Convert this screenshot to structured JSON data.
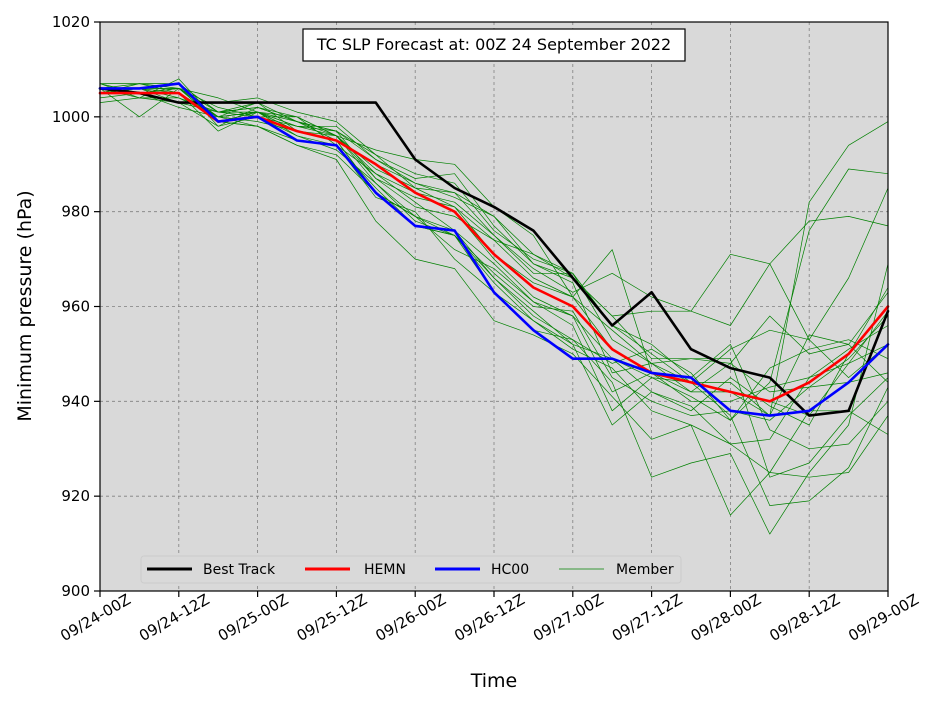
{
  "chart_data": {
    "type": "line",
    "title": "TC SLP Forecast at: 00Z 24 September 2022",
    "xlabel": "Time",
    "ylabel": "Minimum pressure (hPa)",
    "ylim": [
      900,
      1020
    ],
    "xlim": [
      0,
      120
    ],
    "yticks": [
      900,
      920,
      940,
      960,
      980,
      1000,
      1020
    ],
    "xticks": [
      {
        "value": 0,
        "label": "09/24-00Z"
      },
      {
        "value": 12,
        "label": "09/24-12Z"
      },
      {
        "value": 24,
        "label": "09/25-00Z"
      },
      {
        "value": 36,
        "label": "09/25-12Z"
      },
      {
        "value": 48,
        "label": "09/26-00Z"
      },
      {
        "value": 60,
        "label": "09/26-12Z"
      },
      {
        "value": 72,
        "label": "09/27-00Z"
      },
      {
        "value": 84,
        "label": "09/27-12Z"
      },
      {
        "value": 96,
        "label": "09/28-00Z"
      },
      {
        "value": 108,
        "label": "09/28-12Z"
      },
      {
        "value": 120,
        "label": "09/29-00Z"
      }
    ],
    "x": [
      0,
      6,
      12,
      18,
      24,
      30,
      36,
      42,
      48,
      54,
      60,
      66,
      72,
      78,
      84,
      90,
      96,
      102,
      108,
      114,
      120
    ],
    "grid": true,
    "legend_position": "bottom-left",
    "plot_background": "#d9d9d9",
    "series": [
      {
        "name": "Member",
        "color": "#008000",
        "linewidth": 0.7,
        "role": "member",
        "values": [
          1006,
          1005,
          1006,
          999,
          1001,
          997,
          995,
          990,
          984,
          980,
          970,
          962,
          958,
          949,
          945,
          944,
          937,
          918,
          919,
          926,
          943
        ]
      },
      {
        "name": "",
        "color": "#008000",
        "linewidth": 0.7,
        "role": "member",
        "values": [
          1005,
          1006,
          1007,
          998,
          1000,
          996,
          993,
          986,
          978,
          975,
          965,
          957,
          951,
          947,
          938,
          935,
          931,
          925,
          924,
          925,
          937
        ]
      },
      {
        "name": "",
        "color": "#008000",
        "linewidth": 0.7,
        "role": "member",
        "values": [
          1007,
          1004,
          1003,
          1001,
          1003,
          999,
          997,
          992,
          985,
          981,
          974,
          966,
          962,
          955,
          948,
          942,
          942,
          940,
          937,
          948,
          959
        ]
      },
      {
        "name": "",
        "color": "#008000",
        "linewidth": 0.7,
        "role": "member",
        "values": [
          1003,
          1004,
          1008,
          999,
          998,
          995,
          994,
          983,
          980,
          970,
          963,
          955,
          953,
          944,
          924,
          927,
          929,
          912,
          925,
          935,
          969
        ]
      },
      {
        "name": "",
        "color": "#008000",
        "linewidth": 0.7,
        "role": "member",
        "values": [
          1006,
          1005,
          1003,
          998,
          1002,
          999,
          996,
          988,
          982,
          976,
          969,
          961,
          956,
          938,
          945,
          941,
          936,
          944,
          976,
          989,
          988
        ]
      },
      {
        "name": "",
        "color": "#008000",
        "linewidth": 0.7,
        "role": "member",
        "values": [
          1005,
          1007,
          1005,
          1000,
          1001,
          998,
          998,
          991,
          987,
          988,
          977,
          969,
          965,
          946,
          948,
          944,
          942,
          937,
          982,
          994,
          999
        ]
      },
      {
        "name": "",
        "color": "#008000",
        "linewidth": 0.7,
        "role": "member",
        "values": [
          1006,
          1006,
          1006,
          1002,
          1000,
          1000,
          996,
          987,
          981,
          979,
          974,
          971,
          967,
          956,
          950,
          944,
          951,
          955,
          953,
          945,
          952
        ]
      },
      {
        "name": "",
        "color": "#008000",
        "linewidth": 0.7,
        "role": "member",
        "values": [
          1006,
          1004,
          1004,
          1000,
          1001,
          1000,
          994,
          985,
          977,
          975,
          963,
          957,
          952,
          949,
          942,
          938,
          945,
          939,
          935,
          950,
          964
        ]
      },
      {
        "name": "",
        "color": "#008000",
        "linewidth": 0.7,
        "role": "member",
        "values": [
          1004,
          1005,
          1002,
          1000,
          998,
          994,
          991,
          978,
          970,
          968,
          957,
          954,
          950,
          941,
          932,
          935,
          916,
          925,
          938,
          938,
          933
        ]
      },
      {
        "name": "",
        "color": "#008000",
        "linewidth": 0.7,
        "role": "member",
        "values": [
          1007,
          1007,
          1007,
          1001,
          1002,
          1000,
          996,
          986,
          979,
          972,
          968,
          961,
          958,
          942,
          946,
          940,
          940,
          943,
          945,
          951,
          956
        ]
      },
      {
        "name": "",
        "color": "#008000",
        "linewidth": 0.7,
        "role": "member",
        "values": [
          1005,
          1006,
          1003,
          1003,
          1004,
          1001,
          999,
          992,
          988,
          986,
          976,
          970,
          967,
          953,
          948,
          949,
          949,
          924,
          927,
          937,
          945
        ]
      },
      {
        "name": "",
        "color": "#008000",
        "linewidth": 0.7,
        "role": "member",
        "values": [
          1006,
          1006,
          1004,
          1001,
          1001,
          997,
          995,
          984,
          979,
          976,
          966,
          958,
          953,
          948,
          951,
          946,
          936,
          947,
          951,
          953,
          949
        ]
      },
      {
        "name": "",
        "color": "#008000",
        "linewidth": 0.7,
        "role": "member",
        "values": [
          1006,
          1006,
          1005,
          1000,
          1003,
          997,
          996,
          993,
          991,
          990,
          981,
          975,
          962,
          972,
          946,
          942,
          948,
          958,
          950,
          952,
          944
        ]
      },
      {
        "name": "",
        "color": "#008000",
        "linewidth": 0.7,
        "role": "member",
        "values": [
          1005,
          1005,
          1006,
          999,
          998,
          994,
          992,
          984,
          979,
          975,
          967,
          960,
          959,
          945,
          940,
          937,
          938,
          936,
          943,
          949,
          958
        ]
      },
      {
        "name": "",
        "color": "#008000",
        "linewidth": 0.7,
        "role": "member",
        "values": [
          1005,
          1006,
          1007,
          1001,
          1000,
          998,
          997,
          987,
          983,
          981,
          971,
          965,
          962,
          951,
          946,
          944,
          944,
          937,
          954,
          952,
          963
        ]
      },
      {
        "name": "",
        "color": "#008000",
        "linewidth": 0.7,
        "role": "member",
        "values": [
          1006,
          1007,
          1006,
          1000,
          1001,
          999,
          995,
          990,
          986,
          983,
          979,
          969,
          966,
          958,
          959,
          959,
          956,
          969,
          953,
          966,
          985
        ]
      },
      {
        "name": "",
        "color": "#008000",
        "linewidth": 0.7,
        "role": "member",
        "values": [
          1006,
          1005,
          1005,
          997,
          1001,
          996,
          994,
          988,
          984,
          982,
          975,
          968,
          963,
          967,
          962,
          959,
          971,
          969,
          978,
          979,
          977
        ]
      },
      {
        "name": "",
        "color": "#008000",
        "linewidth": 0.7,
        "role": "member",
        "values": [
          1006,
          1000,
          1006,
          1000,
          999,
          997,
          995,
          984,
          977,
          975,
          966,
          959,
          952,
          935,
          942,
          939,
          931,
          932,
          945,
          948,
          952
        ]
      },
      {
        "name": "",
        "color": "#008000",
        "linewidth": 0.7,
        "role": "member",
        "values": [
          1006,
          1006,
          1006,
          1004,
          1001,
          998,
          996,
          989,
          985,
          984,
          975,
          967,
          967,
          956,
          952,
          945,
          952,
          934,
          930,
          931,
          940
        ]
      },
      {
        "name": "",
        "color": "#008000",
        "linewidth": 0.7,
        "role": "member",
        "values": [
          1007,
          1005,
          1006,
          1001,
          1002,
          999,
          997,
          991,
          986,
          984,
          979,
          971,
          966,
          958,
          949,
          949,
          948,
          942,
          943,
          944,
          946
        ]
      },
      {
        "name": "Best Track",
        "color": "#000000",
        "linewidth": 2.6,
        "role": "best",
        "values": [
          1006,
          1005,
          1003,
          1003,
          1003,
          1003,
          1003,
          1003,
          991,
          985,
          981,
          976,
          966,
          956,
          963,
          951,
          947,
          945,
          937,
          938,
          959
        ]
      },
      {
        "name": "HEMN",
        "color": "#ff0000",
        "linewidth": 2.6,
        "role": "mean",
        "values": [
          1005,
          1005,
          1005,
          999,
          1000,
          997,
          995,
          990,
          984,
          980,
          971,
          964,
          960,
          951,
          946,
          944,
          942,
          940,
          944,
          950,
          960
        ]
      },
      {
        "name": "HC00",
        "color": "#0000ff",
        "linewidth": 2.6,
        "role": "control",
        "values": [
          1006,
          1006,
          1007,
          999,
          1000,
          995,
          994,
          984,
          977,
          976,
          963,
          955,
          949,
          949,
          946,
          945,
          938,
          937,
          938,
          944,
          952
        ]
      }
    ],
    "legend": [
      {
        "label": "Best Track",
        "color": "#000000",
        "linewidth": 3
      },
      {
        "label": "HEMN",
        "color": "#ff0000",
        "linewidth": 3
      },
      {
        "label": "HC00",
        "color": "#0000ff",
        "linewidth": 3
      },
      {
        "label": "Member",
        "color": "#008000",
        "linewidth": 0.8
      }
    ]
  }
}
